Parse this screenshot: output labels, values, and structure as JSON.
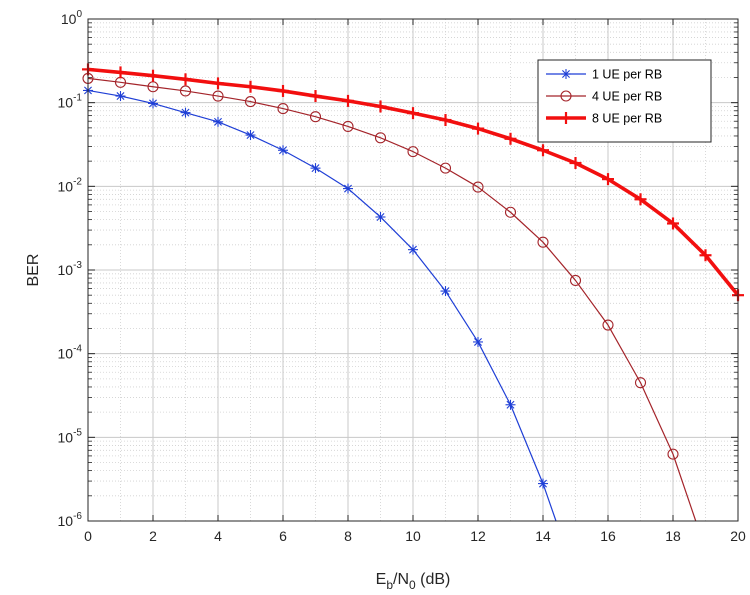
{
  "chart_data": {
    "type": "line",
    "xlabel": {
      "main": "E",
      "sub1": "b",
      "mid": "/N",
      "sub2": "0",
      "tail": " (dB)"
    },
    "ylabel": "BER",
    "y_scale": "log",
    "xlim": [
      0,
      20
    ],
    "ylim": [
      1e-06,
      1
    ],
    "x_ticks": [
      "0",
      "2",
      "4",
      "6",
      "8",
      "10",
      "12",
      "14",
      "16",
      "18",
      "20"
    ],
    "y_ticks": [
      {
        "base": "10",
        "exp": "0"
      },
      {
        "base": "10",
        "exp": "-1"
      },
      {
        "base": "10",
        "exp": "-2"
      },
      {
        "base": "10",
        "exp": "-3"
      },
      {
        "base": "10",
        "exp": "-4"
      },
      {
        "base": "10",
        "exp": "-5"
      },
      {
        "base": "10",
        "exp": "-6"
      }
    ],
    "grid": "major and minor, dotted",
    "legend_position": "top-right",
    "series": [
      {
        "name": "1 UE per RB",
        "color": "#1f3fd6",
        "marker": "asterisk",
        "line_width": "thin",
        "x": [
          0,
          1,
          2,
          3,
          4,
          5,
          6,
          7,
          8,
          9,
          10,
          11,
          12,
          13,
          14,
          14.4
        ],
        "y": [
          0.14,
          0.12,
          0.098,
          0.076,
          0.059,
          0.041,
          0.027,
          0.0165,
          0.0094,
          0.0043,
          0.00175,
          0.00056,
          0.000138,
          2.45e-05,
          2.8e-06,
          1e-06
        ]
      },
      {
        "name": "4 UE per RB",
        "color": "#a4242a",
        "marker": "circle",
        "line_width": "thin",
        "x": [
          0,
          1,
          2,
          3,
          4,
          5,
          6,
          7,
          8,
          9,
          10,
          11,
          12,
          13,
          14,
          15,
          16,
          17,
          18,
          18.7
        ],
        "y": [
          0.195,
          0.175,
          0.155,
          0.138,
          0.12,
          0.103,
          0.085,
          0.068,
          0.052,
          0.038,
          0.026,
          0.0165,
          0.0098,
          0.0049,
          0.00215,
          0.00075,
          0.00022,
          4.5e-05,
          6.3e-06,
          1e-06
        ]
      },
      {
        "name": "8 UE per RB",
        "color": "#f20f0f",
        "marker": "plus",
        "line_width": "thick",
        "x": [
          0,
          1,
          2,
          3,
          4,
          5,
          6,
          7,
          8,
          9,
          10,
          11,
          12,
          13,
          14,
          15,
          16,
          17,
          18,
          19,
          20
        ],
        "y": [
          0.25,
          0.23,
          0.21,
          0.19,
          0.17,
          0.155,
          0.138,
          0.12,
          0.105,
          0.09,
          0.075,
          0.062,
          0.049,
          0.037,
          0.027,
          0.019,
          0.0122,
          0.007,
          0.0036,
          0.0015,
          0.0005
        ]
      }
    ]
  }
}
